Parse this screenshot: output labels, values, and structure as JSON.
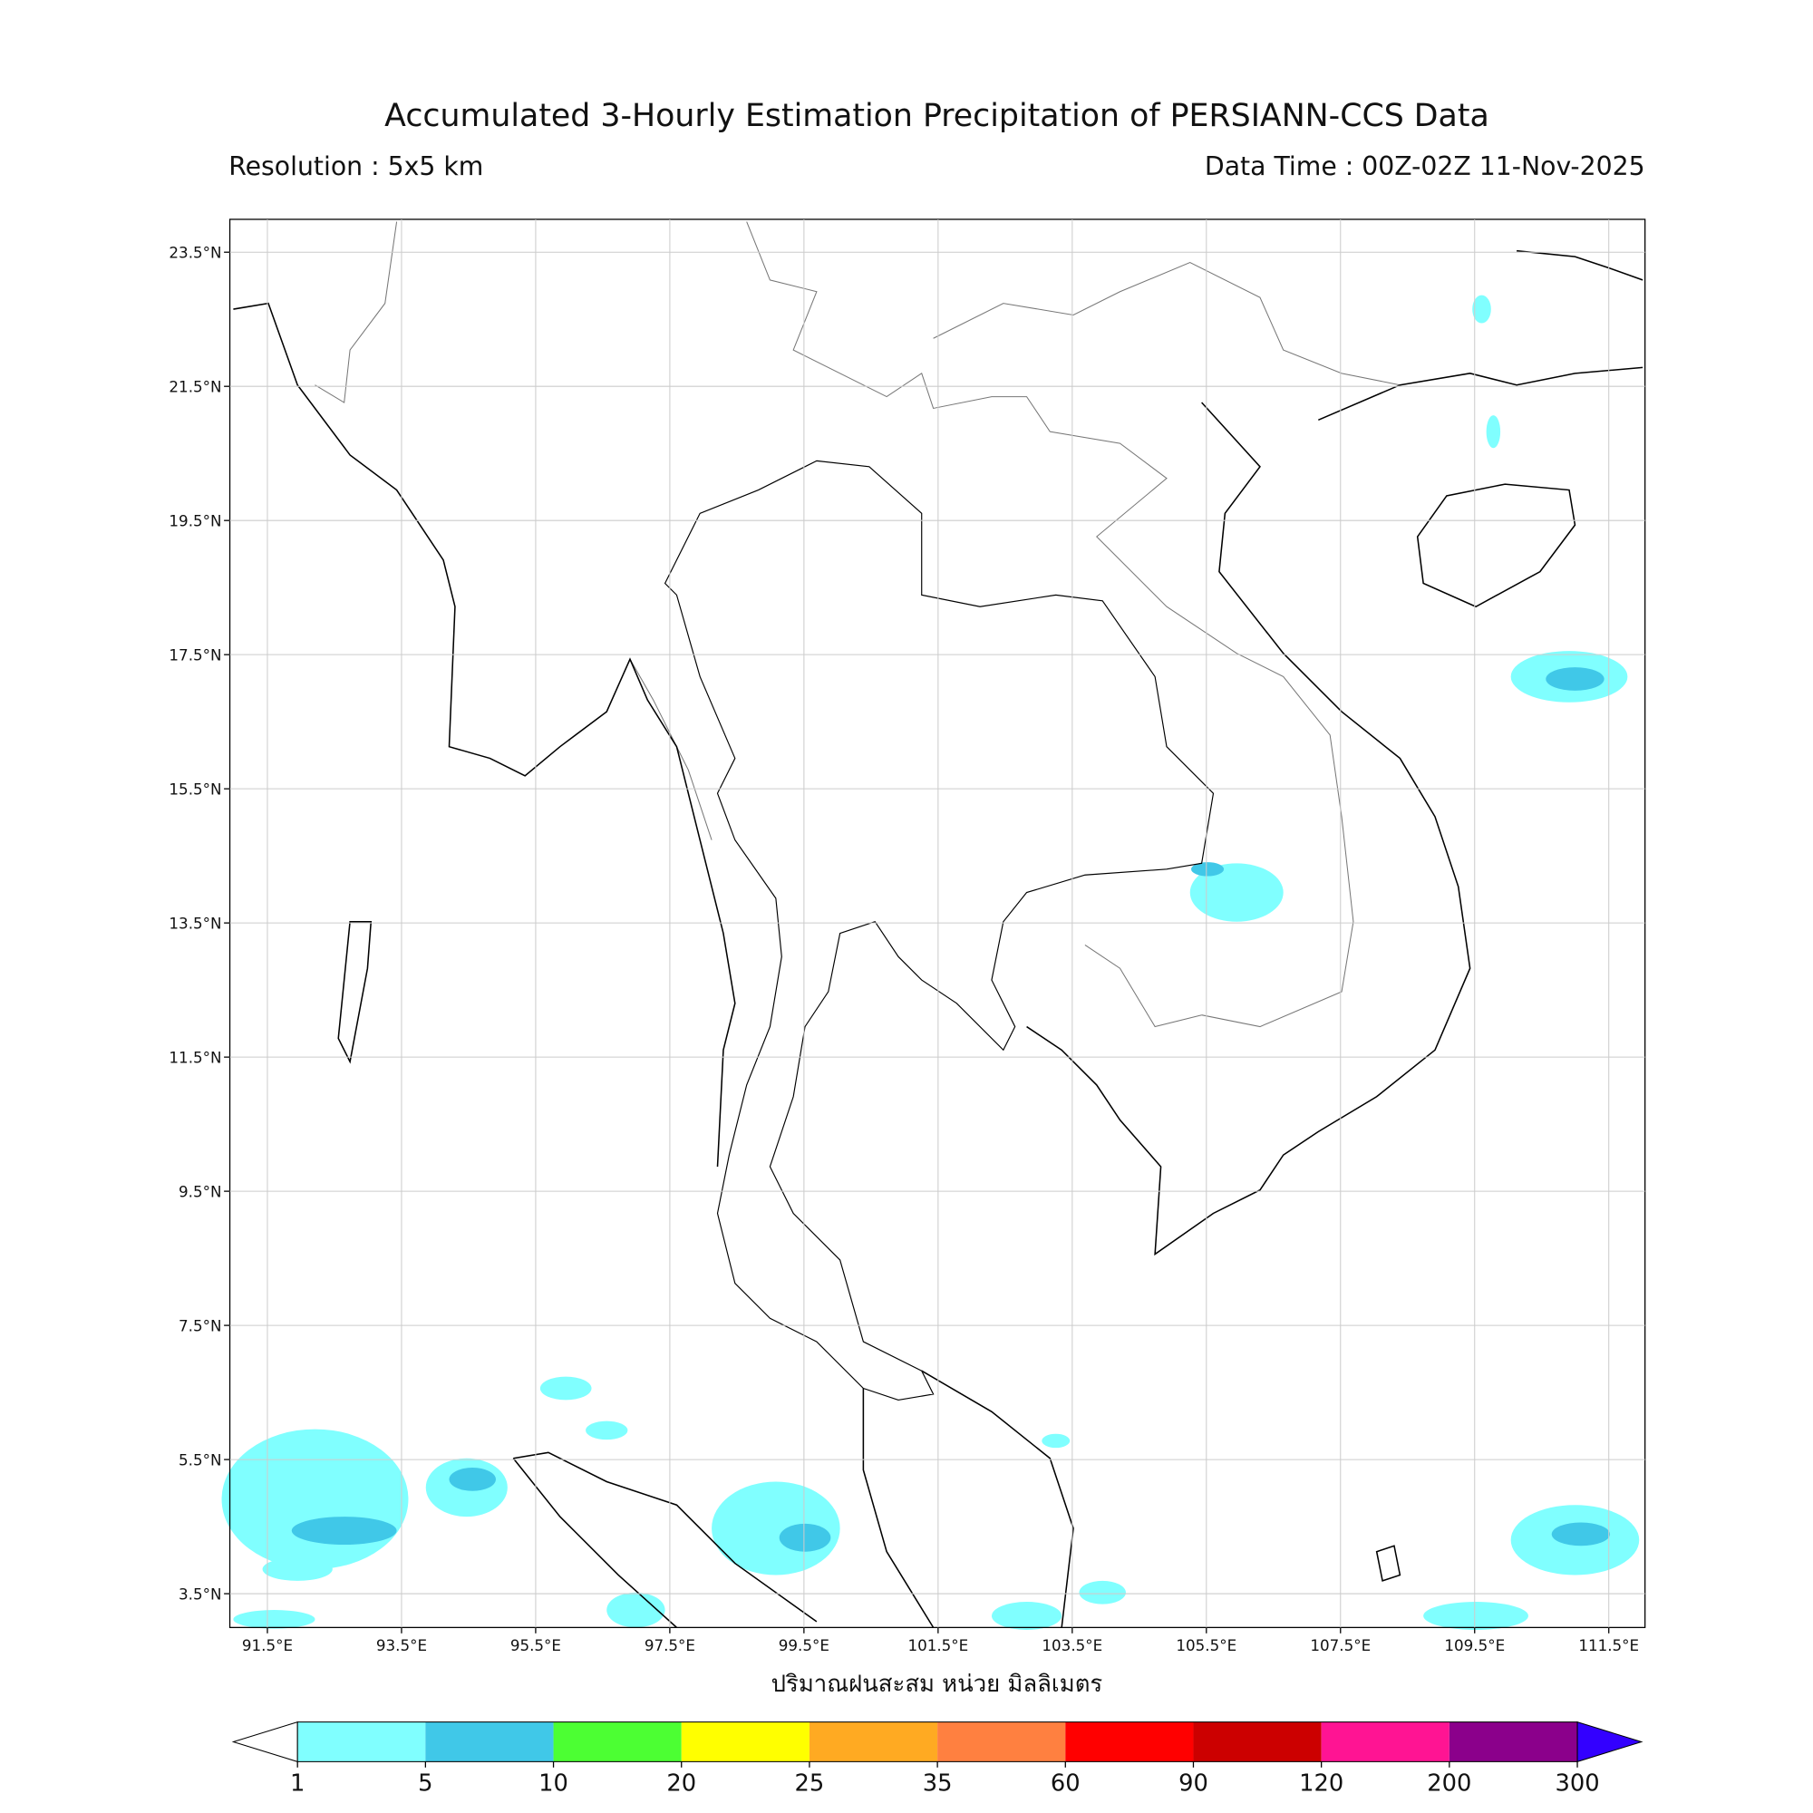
{
  "header": {
    "title": "Accumulated 3-Hourly Estimation Precipitation of PERSIANN-CCS Data",
    "resolution": "Resolution : 5x5 km",
    "data_time": "Data Time : 00Z-02Z 11-Nov-2025"
  },
  "map": {
    "xlim": [
      90.94,
      112.04
    ],
    "ylim": [
      2.996,
      23.99
    ],
    "grid": true,
    "xticks": [
      {
        "value": 91.5,
        "label": "91.5°E"
      },
      {
        "value": 93.5,
        "label": "93.5°E"
      },
      {
        "value": 95.5,
        "label": "95.5°E"
      },
      {
        "value": 97.5,
        "label": "97.5°E"
      },
      {
        "value": 99.5,
        "label": "99.5°E"
      },
      {
        "value": 101.5,
        "label": "101.5°E"
      },
      {
        "value": 103.5,
        "label": "103.5°E"
      },
      {
        "value": 105.5,
        "label": "105.5°E"
      },
      {
        "value": 107.5,
        "label": "107.5°E"
      },
      {
        "value": 109.5,
        "label": "109.5°E"
      },
      {
        "value": 111.5,
        "label": "111.5°E"
      }
    ],
    "yticks": [
      {
        "value": 3.5,
        "label": "3.5°N"
      },
      {
        "value": 5.5,
        "label": "5.5°N"
      },
      {
        "value": 7.5,
        "label": "7.5°N"
      },
      {
        "value": 9.5,
        "label": "9.5°N"
      },
      {
        "value": 11.5,
        "label": "11.5°N"
      },
      {
        "value": 13.5,
        "label": "13.5°N"
      },
      {
        "value": 15.5,
        "label": "15.5°N"
      },
      {
        "value": 17.5,
        "label": "17.5°N"
      },
      {
        "value": 19.5,
        "label": "19.5°N"
      },
      {
        "value": 21.5,
        "label": "21.5°N"
      },
      {
        "value": 23.5,
        "label": "23.5°N"
      }
    ],
    "x_label": "ปริมาณฝนสะสม หน่วย มิลลิเมตร"
  },
  "colorbar": {
    "levels": [
      1,
      5,
      10,
      20,
      25,
      35,
      60,
      90,
      120,
      200,
      300
    ],
    "colors": [
      "#80ffff",
      "#40c8e8",
      "#4cff33",
      "#ffff00",
      "#ffaa22",
      "#ff8040",
      "#ff0000",
      "#cc0000",
      "#ff1493",
      "#8b008b"
    ],
    "under_color": "#ffffff",
    "over_color": "#3300ff"
  }
}
